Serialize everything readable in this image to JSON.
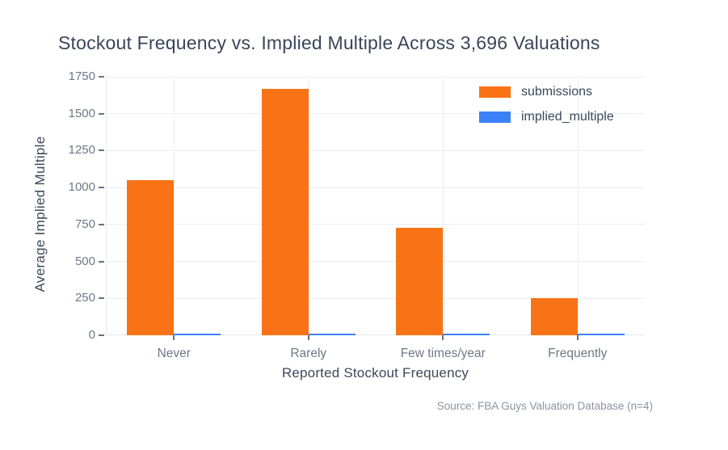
{
  "title": "Stockout Frequency vs. Implied Multiple Across 3,696 Valuations",
  "source_note": "Source: FBA Guys Valuation Database (n=4)",
  "colors": {
    "submissions": "#f97316",
    "implied_multiple": "#3b82f6",
    "gridline": "#e9ecf2",
    "tick_text": "#6e7787",
    "axis_title_text": "#3d4859",
    "title_text": "#3a4559",
    "source_text": "#8b94a3"
  },
  "chart_data": {
    "type": "bar",
    "mode": "grouped",
    "title": "Stockout Frequency vs. Implied Multiple Across 3,696 Valuations",
    "xlabel": "Reported Stockout Frequency",
    "ylabel": "Average Implied Multiple",
    "categories": [
      "Never",
      "Rarely",
      "Few times/year",
      "Frequently"
    ],
    "series": [
      {
        "name": "submissions",
        "color": "#f97316",
        "values": [
          1050,
          1667,
          729,
          250
        ]
      },
      {
        "name": "implied_multiple",
        "color": "#3b82f6",
        "values": [
          12,
          12,
          12,
          12
        ]
      }
    ],
    "ylim": [
      0,
      1750
    ],
    "yticks": [
      0,
      250,
      500,
      750,
      1000,
      1250,
      1500,
      1750
    ],
    "grid": "horizontal gridlines at y ticks, vertical gridlines at category centers",
    "legend_position": "inside top-right",
    "source": "Source: FBA Guys Valuation Database (n=4)"
  },
  "legend": {
    "items": [
      {
        "label": "submissions",
        "color": "#f97316"
      },
      {
        "label": "implied_multiple",
        "color": "#3b82f6"
      }
    ]
  }
}
